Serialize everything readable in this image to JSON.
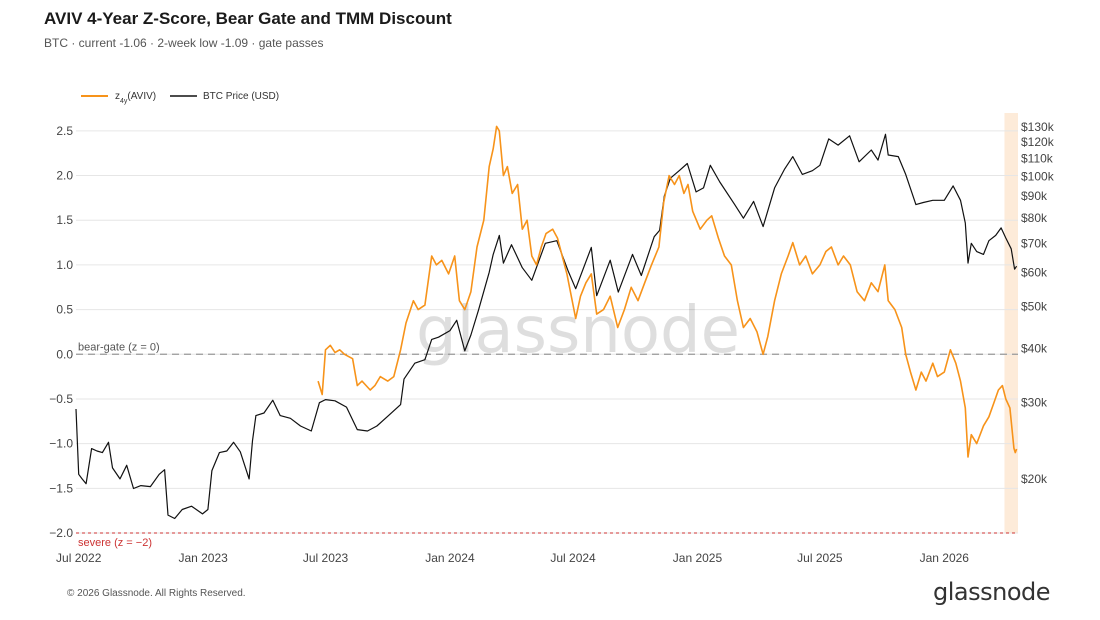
{
  "header": {
    "title": "AVIV 4-Year Z-Score, Bear Gate and TMM Discount",
    "subtitle": "BTC · current -1.06 · 2-week low -1.09 · gate passes"
  },
  "footer": {
    "copyright": "© 2026 Glassnode. All Rights Reserved.",
    "logo_text": "glassnode",
    "watermark_text": "glassnode"
  },
  "colors": {
    "zscore": "#f7931a",
    "price": "#111111",
    "grid": "#e6e6e6",
    "bear_gate": "#999999",
    "severe": "#cc3333",
    "highlight": "#fdebd9"
  },
  "chart_data": {
    "type": "line",
    "x_tick_labels": [
      "Jul 2022",
      "Jan 2023",
      "Jul 2023",
      "Jan 2024",
      "Jul 2024",
      "Jan 2025",
      "Jul 2025",
      "Jan 2026"
    ],
    "x_tick_dates": [
      "2022-07-01",
      "2023-01-01",
      "2023-07-01",
      "2024-01-01",
      "2024-07-01",
      "2025-01-01",
      "2025-07-01",
      "2026-01-01"
    ],
    "xlim": [
      "2022-06-27",
      "2026-04-20"
    ],
    "y_left": {
      "ylim": [
        -2.0,
        2.7
      ],
      "ticks": [
        2.5,
        2.0,
        1.5,
        1.0,
        0.5,
        0.0,
        -0.5,
        -1.0,
        -1.5,
        -2.0
      ],
      "tick_labels": [
        "2.5",
        "2.0",
        "1.5",
        "1.0",
        "0.5",
        "0.0",
        "−0.5",
        "−1.0",
        "−1.5",
        "−2.0"
      ]
    },
    "y_right": {
      "scale": "log",
      "ylim": [
        15000,
        140000
      ],
      "ticks": [
        130000,
        120000,
        110000,
        100000,
        90000,
        80000,
        70000,
        60000,
        50000,
        40000,
        30000,
        20000
      ],
      "tick_labels": [
        "$130k",
        "$120k",
        "$110k",
        "$100k",
        "$90k",
        "$80k",
        "$70k",
        "$60k",
        "$50k",
        "$40k",
        "$30k",
        "$20k"
      ]
    },
    "thresholds": [
      {
        "label": "bear-gate (z = 0)",
        "value": 0.0
      },
      {
        "label": "severe (z = −2)",
        "value": -2.0
      }
    ],
    "highlight_range": [
      "2026-03-31",
      "2026-04-20"
    ],
    "legend_position": "top-left",
    "series": [
      {
        "name": "z",
        "name_sub": "4y",
        "name_suffix": "(AVIV)",
        "axis": "left",
        "points": [
          [
            "2023-06-20",
            -0.3
          ],
          [
            "2023-06-26",
            -0.45
          ],
          [
            "2023-07-01",
            0.05
          ],
          [
            "2023-07-08",
            0.1
          ],
          [
            "2023-07-15",
            0.02
          ],
          [
            "2023-07-22",
            0.05
          ],
          [
            "2023-07-29",
            0.0
          ],
          [
            "2023-08-10",
            -0.05
          ],
          [
            "2023-08-17",
            -0.35
          ],
          [
            "2023-08-24",
            -0.3
          ],
          [
            "2023-09-05",
            -0.4
          ],
          [
            "2023-09-12",
            -0.35
          ],
          [
            "2023-09-20",
            -0.25
          ],
          [
            "2023-10-01",
            -0.3
          ],
          [
            "2023-10-10",
            -0.25
          ],
          [
            "2023-10-20",
            0.05
          ],
          [
            "2023-10-28",
            0.35
          ],
          [
            "2023-11-08",
            0.6
          ],
          [
            "2023-11-15",
            0.5
          ],
          [
            "2023-11-25",
            0.55
          ],
          [
            "2023-12-05",
            1.1
          ],
          [
            "2023-12-12",
            1.0
          ],
          [
            "2023-12-20",
            1.05
          ],
          [
            "2023-12-30",
            0.9
          ],
          [
            "2024-01-08",
            1.1
          ],
          [
            "2024-01-15",
            0.6
          ],
          [
            "2024-01-23",
            0.5
          ],
          [
            "2024-02-01",
            0.7
          ],
          [
            "2024-02-10",
            1.2
          ],
          [
            "2024-02-20",
            1.5
          ],
          [
            "2024-02-28",
            2.1
          ],
          [
            "2024-03-05",
            2.3
          ],
          [
            "2024-03-10",
            2.55
          ],
          [
            "2024-03-14",
            2.5
          ],
          [
            "2024-03-20",
            2.0
          ],
          [
            "2024-03-26",
            2.1
          ],
          [
            "2024-04-02",
            1.8
          ],
          [
            "2024-04-10",
            1.9
          ],
          [
            "2024-04-17",
            1.4
          ],
          [
            "2024-04-24",
            1.5
          ],
          [
            "2024-05-01",
            1.1
          ],
          [
            "2024-05-08",
            1.0
          ],
          [
            "2024-05-15",
            1.2
          ],
          [
            "2024-05-22",
            1.35
          ],
          [
            "2024-06-01",
            1.4
          ],
          [
            "2024-06-08",
            1.3
          ],
          [
            "2024-06-15",
            1.1
          ],
          [
            "2024-06-22",
            0.9
          ],
          [
            "2024-07-05",
            0.4
          ],
          [
            "2024-07-12",
            0.65
          ],
          [
            "2024-07-20",
            0.8
          ],
          [
            "2024-07-28",
            0.9
          ],
          [
            "2024-08-05",
            0.45
          ],
          [
            "2024-08-15",
            0.5
          ],
          [
            "2024-08-25",
            0.65
          ],
          [
            "2024-09-05",
            0.3
          ],
          [
            "2024-09-15",
            0.5
          ],
          [
            "2024-09-25",
            0.75
          ],
          [
            "2024-10-05",
            0.6
          ],
          [
            "2024-10-15",
            0.8
          ],
          [
            "2024-10-25",
            1.0
          ],
          [
            "2024-11-05",
            1.2
          ],
          [
            "2024-11-12",
            1.7
          ],
          [
            "2024-11-20",
            2.0
          ],
          [
            "2024-11-28",
            1.9
          ],
          [
            "2024-12-05",
            2.0
          ],
          [
            "2024-12-12",
            1.8
          ],
          [
            "2024-12-18",
            1.9
          ],
          [
            "2024-12-25",
            1.6
          ],
          [
            "2025-01-05",
            1.4
          ],
          [
            "2025-01-15",
            1.5
          ],
          [
            "2025-01-22",
            1.55
          ],
          [
            "2025-02-01",
            1.3
          ],
          [
            "2025-02-10",
            1.1
          ],
          [
            "2025-02-20",
            1.0
          ],
          [
            "2025-03-01",
            0.6
          ],
          [
            "2025-03-10",
            0.3
          ],
          [
            "2025-03-20",
            0.4
          ],
          [
            "2025-03-30",
            0.25
          ],
          [
            "2025-04-08",
            0.0
          ],
          [
            "2025-04-15",
            0.2
          ],
          [
            "2025-04-25",
            0.6
          ],
          [
            "2025-05-05",
            0.9
          ],
          [
            "2025-05-15",
            1.1
          ],
          [
            "2025-05-22",
            1.25
          ],
          [
            "2025-06-01",
            1.0
          ],
          [
            "2025-06-10",
            1.1
          ],
          [
            "2025-06-20",
            0.9
          ],
          [
            "2025-07-01",
            1.0
          ],
          [
            "2025-07-10",
            1.15
          ],
          [
            "2025-07-18",
            1.2
          ],
          [
            "2025-07-28",
            1.0
          ],
          [
            "2025-08-05",
            1.1
          ],
          [
            "2025-08-15",
            1.0
          ],
          [
            "2025-08-25",
            0.7
          ],
          [
            "2025-09-05",
            0.6
          ],
          [
            "2025-09-15",
            0.8
          ],
          [
            "2025-09-25",
            0.7
          ],
          [
            "2025-10-05",
            1.0
          ],
          [
            "2025-10-10",
            0.6
          ],
          [
            "2025-10-20",
            0.5
          ],
          [
            "2025-10-30",
            0.3
          ],
          [
            "2025-11-05",
            0.0
          ],
          [
            "2025-11-12",
            -0.2
          ],
          [
            "2025-11-20",
            -0.4
          ],
          [
            "2025-11-28",
            -0.2
          ],
          [
            "2025-12-05",
            -0.3
          ],
          [
            "2025-12-15",
            -0.1
          ],
          [
            "2025-12-22",
            -0.25
          ],
          [
            "2026-01-01",
            -0.2
          ],
          [
            "2026-01-10",
            0.05
          ],
          [
            "2026-01-18",
            -0.1
          ],
          [
            "2026-01-25",
            -0.3
          ],
          [
            "2026-02-01",
            -0.6
          ],
          [
            "2026-02-05",
            -1.15
          ],
          [
            "2026-02-10",
            -0.9
          ],
          [
            "2026-02-18",
            -1.0
          ],
          [
            "2026-02-28",
            -0.8
          ],
          [
            "2026-03-08",
            -0.7
          ],
          [
            "2026-03-15",
            -0.55
          ],
          [
            "2026-03-22",
            -0.4
          ],
          [
            "2026-03-28",
            -0.35
          ],
          [
            "2026-04-02",
            -0.5
          ],
          [
            "2026-04-08",
            -0.6
          ],
          [
            "2026-04-14",
            -1.05
          ],
          [
            "2026-04-16",
            -1.1
          ],
          [
            "2026-04-18",
            -1.06
          ]
        ]
      },
      {
        "name": "BTC Price (USD)",
        "axis": "right",
        "points": [
          [
            "2022-06-27",
            29000
          ],
          [
            "2022-07-01",
            20500
          ],
          [
            "2022-07-06",
            20000
          ],
          [
            "2022-07-12",
            19500
          ],
          [
            "2022-07-20",
            23500
          ],
          [
            "2022-07-28",
            23200
          ],
          [
            "2022-08-05",
            23000
          ],
          [
            "2022-08-14",
            24300
          ],
          [
            "2022-08-20",
            21200
          ],
          [
            "2022-08-31",
            20000
          ],
          [
            "2022-09-10",
            21500
          ],
          [
            "2022-09-20",
            19000
          ],
          [
            "2022-10-01",
            19300
          ],
          [
            "2022-10-15",
            19200
          ],
          [
            "2022-10-28",
            20500
          ],
          [
            "2022-11-05",
            21000
          ],
          [
            "2022-11-10",
            16500
          ],
          [
            "2022-11-20",
            16200
          ],
          [
            "2022-12-01",
            17000
          ],
          [
            "2022-12-15",
            17300
          ],
          [
            "2022-12-31",
            16600
          ],
          [
            "2023-01-08",
            17000
          ],
          [
            "2023-01-14",
            20900
          ],
          [
            "2023-01-25",
            23000
          ],
          [
            "2023-02-05",
            23200
          ],
          [
            "2023-02-15",
            24300
          ],
          [
            "2023-02-25",
            23100
          ],
          [
            "2023-03-10",
            20000
          ],
          [
            "2023-03-15",
            24500
          ],
          [
            "2023-03-20",
            28000
          ],
          [
            "2023-04-01",
            28400
          ],
          [
            "2023-04-14",
            30400
          ],
          [
            "2023-04-25",
            28000
          ],
          [
            "2023-05-10",
            27600
          ],
          [
            "2023-05-25",
            26500
          ],
          [
            "2023-06-10",
            25800
          ],
          [
            "2023-06-22",
            30000
          ],
          [
            "2023-07-01",
            30500
          ],
          [
            "2023-07-15",
            30300
          ],
          [
            "2023-08-01",
            29300
          ],
          [
            "2023-08-17",
            26000
          ],
          [
            "2023-09-01",
            25800
          ],
          [
            "2023-09-15",
            26500
          ],
          [
            "2023-10-01",
            27900
          ],
          [
            "2023-10-20",
            29700
          ],
          [
            "2023-10-25",
            34000
          ],
          [
            "2023-11-10",
            37000
          ],
          [
            "2023-11-25",
            37700
          ],
          [
            "2023-12-05",
            42000
          ],
          [
            "2023-12-15",
            42500
          ],
          [
            "2024-01-01",
            44000
          ],
          [
            "2024-01-11",
            46500
          ],
          [
            "2024-01-23",
            39500
          ],
          [
            "2024-02-01",
            43000
          ],
          [
            "2024-02-12",
            49000
          ],
          [
            "2024-02-28",
            60000
          ],
          [
            "2024-03-05",
            66000
          ],
          [
            "2024-03-14",
            73000
          ],
          [
            "2024-03-20",
            63000
          ],
          [
            "2024-04-01",
            69500
          ],
          [
            "2024-04-17",
            61500
          ],
          [
            "2024-05-01",
            57500
          ],
          [
            "2024-05-21",
            70000
          ],
          [
            "2024-06-07",
            71000
          ],
          [
            "2024-06-24",
            60300
          ],
          [
            "2024-07-05",
            55000
          ],
          [
            "2024-07-28",
            68500
          ],
          [
            "2024-08-05",
            53000
          ],
          [
            "2024-08-25",
            64000
          ],
          [
            "2024-09-06",
            54000
          ],
          [
            "2024-09-27",
            66000
          ],
          [
            "2024-10-10",
            59000
          ],
          [
            "2024-10-29",
            72500
          ],
          [
            "2024-11-06",
            75000
          ],
          [
            "2024-11-13",
            90000
          ],
          [
            "2024-11-22",
            99000
          ],
          [
            "2024-12-05",
            103000
          ],
          [
            "2024-12-17",
            107000
          ],
          [
            "2024-12-30",
            92000
          ],
          [
            "2025-01-10",
            94000
          ],
          [
            "2025-01-20",
            106000
          ],
          [
            "2025-02-03",
            97000
          ],
          [
            "2025-02-25",
            86000
          ],
          [
            "2025-03-10",
            80000
          ],
          [
            "2025-03-25",
            87500
          ],
          [
            "2025-04-08",
            76500
          ],
          [
            "2025-04-25",
            94000
          ],
          [
            "2025-05-10",
            104000
          ],
          [
            "2025-05-22",
            111000
          ],
          [
            "2025-06-05",
            101000
          ],
          [
            "2025-06-20",
            103000
          ],
          [
            "2025-07-01",
            106000
          ],
          [
            "2025-07-14",
            122000
          ],
          [
            "2025-07-28",
            118000
          ],
          [
            "2025-08-14",
            124000
          ],
          [
            "2025-08-28",
            108000
          ],
          [
            "2025-09-15",
            115000
          ],
          [
            "2025-09-25",
            109000
          ],
          [
            "2025-10-06",
            125000
          ],
          [
            "2025-10-10",
            112000
          ],
          [
            "2025-10-25",
            111000
          ],
          [
            "2025-11-05",
            101000
          ],
          [
            "2025-11-20",
            86000
          ],
          [
            "2025-12-01",
            87000
          ],
          [
            "2025-12-15",
            88000
          ],
          [
            "2026-01-01",
            88000
          ],
          [
            "2026-01-14",
            95000
          ],
          [
            "2026-01-25",
            88000
          ],
          [
            "2026-02-01",
            78000
          ],
          [
            "2026-02-05",
            63000
          ],
          [
            "2026-02-10",
            70000
          ],
          [
            "2026-02-18",
            67000
          ],
          [
            "2026-02-28",
            66000
          ],
          [
            "2026-03-08",
            71000
          ],
          [
            "2026-03-18",
            73000
          ],
          [
            "2026-03-26",
            76000
          ],
          [
            "2026-04-02",
            72000
          ],
          [
            "2026-04-10",
            68000
          ],
          [
            "2026-04-15",
            61000
          ],
          [
            "2026-04-18",
            62000
          ]
        ]
      }
    ]
  }
}
